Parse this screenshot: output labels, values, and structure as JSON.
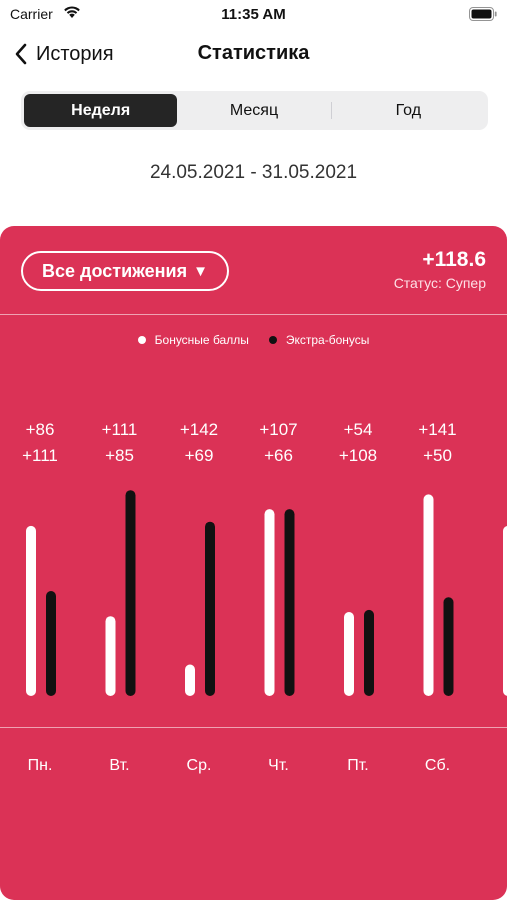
{
  "status_bar": {
    "carrier": "Carrier",
    "time": "11:35 AM"
  },
  "nav": {
    "back_label": "История",
    "title": "Статистика"
  },
  "segments": [
    {
      "label": "Неделя",
      "active": true
    },
    {
      "label": "Месяц",
      "active": false
    },
    {
      "label": "Год",
      "active": false
    }
  ],
  "date_range": "24.05.2021 - 31.05.2021",
  "card": {
    "filter_label": "Все достижения",
    "filter_arrow": "▼",
    "total": "+118.6",
    "status": "Статус: Супер",
    "colors": {
      "background": "#db3256",
      "series_a": "#ffffff",
      "series_b": "#111111"
    }
  },
  "legend": [
    {
      "label": "Бонусные баллы",
      "color": "#ffffff"
    },
    {
      "label": "Экстра-бонусы",
      "color": "#111111"
    }
  ],
  "chart_data": {
    "type": "bar",
    "categories": [
      "Пн.",
      "Вт.",
      "Ср.",
      "Чт.",
      "Пт.",
      "Сб.",
      ""
    ],
    "series": [
      {
        "name": "Бонусные баллы",
        "values": [
          86,
          111,
          142,
          107,
          54,
          141,
          null
        ],
        "labels": [
          "+86",
          "+111",
          "+142",
          "+107",
          "+54",
          "+141",
          "+"
        ],
        "bar_fraction": [
          0.81,
          0.38,
          0.15,
          0.89,
          0.4,
          0.96,
          0.81
        ]
      },
      {
        "name": "Экстра-бонусы",
        "values": [
          111,
          85,
          69,
          66,
          108,
          50,
          null
        ],
        "labels": [
          "+111",
          "+85",
          "+69",
          "+66",
          "+108",
          "+50",
          "+"
        ],
        "bar_fraction": [
          0.5,
          0.98,
          0.83,
          0.89,
          0.41,
          0.47,
          0
        ]
      }
    ]
  }
}
